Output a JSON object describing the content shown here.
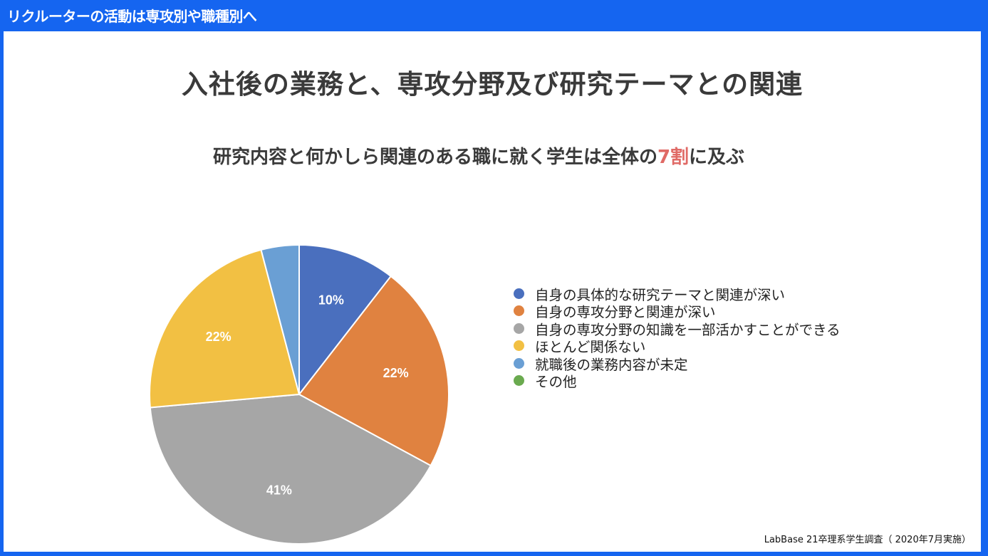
{
  "header": {
    "title": "リクルーターの活動は専攻別や職種別へ"
  },
  "slide": {
    "title": "入社後の業務と、専攻分野及び研究テーマとの関連",
    "subtitle_before": "研究内容と何かしら関連のある職に就く学生は全体の",
    "subtitle_highlight": "7割",
    "subtitle_after": "に及ぶ",
    "source": "LabBase 21卒理系学生調査（ 2020年7月実施）"
  },
  "colors": {
    "header_bg": "#1565f0",
    "highlight": "#e06a66"
  },
  "chart_data": {
    "type": "pie",
    "title": "",
    "legend_position": "right",
    "slices": [
      {
        "name": "自身の具体的な研究テーマと関連が深い",
        "value": 10.5,
        "label": "10%",
        "color": "#4a6fbe"
      },
      {
        "name": "自身の専攻分野と関連が深い",
        "value": 22.4,
        "label": "22%",
        "color": "#e08240"
      },
      {
        "name": "自身の専攻分野の知識を一部活かすことができる",
        "value": 40.7,
        "label": "41%",
        "color": "#a6a6a6"
      },
      {
        "name": "ほとんど関係ない",
        "value": 22.3,
        "label": "22%",
        "color": "#f2c043"
      },
      {
        "name": "就職後の業務内容が未定",
        "value": 4.1,
        "label": "",
        "color": "#6a9fd4"
      },
      {
        "name": "その他",
        "value": 0,
        "label": "",
        "color": "#6aaa4f"
      }
    ]
  }
}
